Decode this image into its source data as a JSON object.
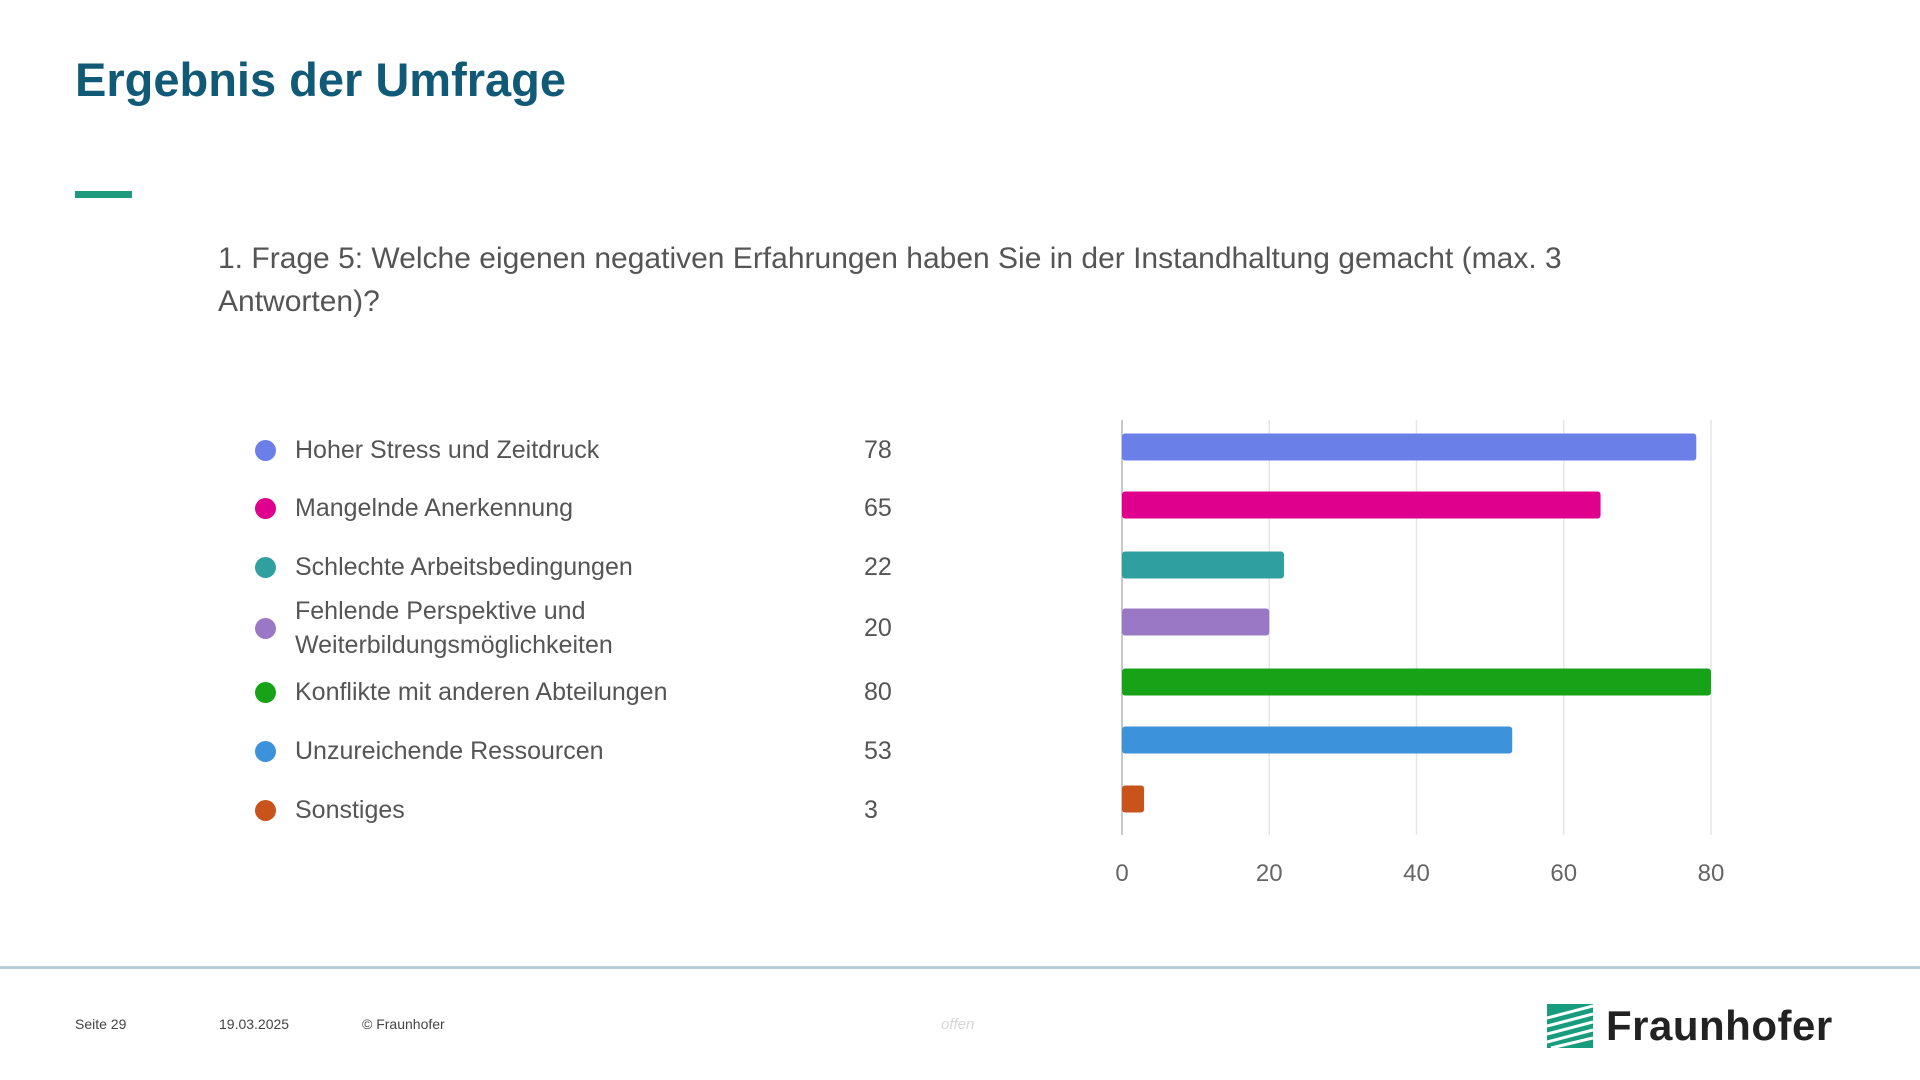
{
  "slide": {
    "title": "Ergebnis der Umfrage",
    "question_number": "1.",
    "question": "Frage 5: Welche eigenen negativen Erfahrungen haben Sie in der Instandhaltung gemacht (max. 3 Antworten)?"
  },
  "chart_data": {
    "type": "bar",
    "orientation": "horizontal",
    "categories": [
      "Hoher Stress und Zeitdruck",
      "Mangelnde Anerkennung",
      "Schlechte Arbeitsbedingungen",
      "Fehlende Perspektive und Weiterbildungsmöglichkeiten",
      "Konflikte mit anderen Abteilungen",
      "Unzureichende Ressourcen",
      "Sonstiges"
    ],
    "values": [
      78,
      65,
      22,
      20,
      80,
      53,
      3
    ],
    "colors": [
      "#6a7fe8",
      "#e0008e",
      "#2f9fa0",
      "#9b78c6",
      "#17a317",
      "#3d93db",
      "#c8541c"
    ],
    "xlim": [
      0,
      80
    ],
    "x_ticks": [
      "0",
      "20",
      "40",
      "60",
      "80"
    ],
    "grid": true,
    "title": "",
    "xlabel": "",
    "ylabel": ""
  },
  "footer": {
    "page": "Seite 29",
    "date": "19.03.2025",
    "copyright": "© Fraunhofer",
    "classification": "offen",
    "logo_text": "Fraunhofer",
    "logo_color": "#179c7d"
  }
}
